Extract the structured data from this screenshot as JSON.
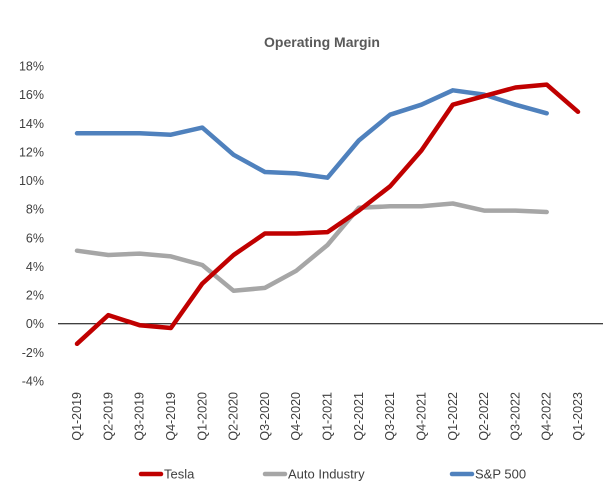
{
  "chart_data": {
    "type": "line",
    "title": "Operating Margin",
    "xlabel": "",
    "ylabel": "",
    "categories": [
      "Q1-2019",
      "Q2-2019",
      "Q3-2019",
      "Q4-2019",
      "Q1-2020",
      "Q2-2020",
      "Q3-2020",
      "Q4-2020",
      "Q1-2021",
      "Q2-2021",
      "Q3-2021",
      "Q4-2021",
      "Q1-2022",
      "Q2-2022",
      "Q3-2022",
      "Q4-2022",
      "Q1-2023"
    ],
    "ylim": [
      -4,
      18
    ],
    "yticks": [
      -4,
      -2,
      0,
      2,
      4,
      6,
      8,
      10,
      12,
      14,
      16,
      18
    ],
    "ytick_labels": [
      "-4%",
      "-2%",
      "0%",
      "2%",
      "4%",
      "6%",
      "8%",
      "10%",
      "12%",
      "14%",
      "16%",
      "18%"
    ],
    "grid": false,
    "legend_position": "bottom",
    "series": [
      {
        "name": "Tesla",
        "color": "#c00000",
        "values": [
          -1.4,
          0.6,
          -0.1,
          -0.3,
          2.8,
          4.8,
          6.3,
          6.3,
          6.4,
          7.9,
          9.6,
          12.1,
          15.3,
          15.9,
          16.5,
          16.7,
          14.8
        ]
      },
      {
        "name": "Auto Industry",
        "color": "#a6a6a6",
        "values": [
          5.1,
          4.8,
          4.9,
          4.7,
          4.1,
          2.3,
          2.5,
          3.7,
          5.5,
          8.1,
          8.2,
          8.2,
          8.4,
          7.9,
          7.9,
          7.8,
          null
        ]
      },
      {
        "name": "S&P 500",
        "color": "#4f81bd",
        "values": [
          13.3,
          13.3,
          13.3,
          13.2,
          13.7,
          11.8,
          10.6,
          10.5,
          10.2,
          12.8,
          14.6,
          15.3,
          16.3,
          16.0,
          15.3,
          14.7,
          null
        ]
      }
    ]
  }
}
